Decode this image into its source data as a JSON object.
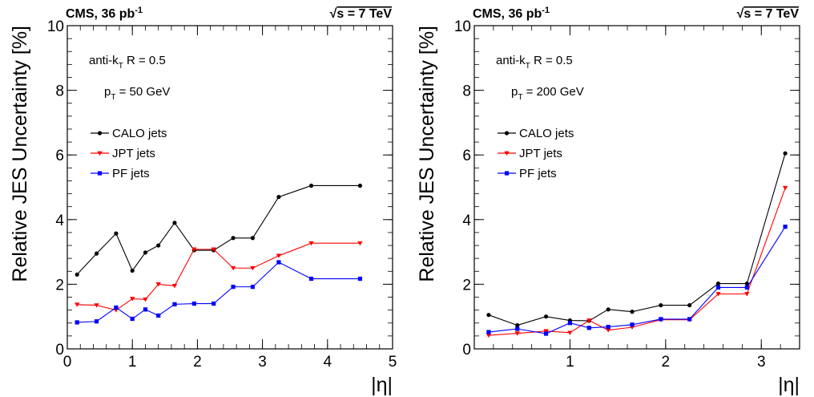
{
  "chart_data": [
    {
      "type": "line",
      "header_left": "CMS, 36 pb",
      "header_left_sup": "-1",
      "header_right_sqrt": "√",
      "header_right": "s = 7 TeV",
      "ylabel": "Relative JES Uncertainty [%]",
      "xlabel": "|η|",
      "xlim": [
        0,
        5
      ],
      "ylim": [
        0,
        10
      ],
      "xticks": [
        "0",
        "1",
        "2",
        "3",
        "4",
        "5"
      ],
      "yticks": [
        "0",
        "2",
        "4",
        "6",
        "8",
        "10"
      ],
      "annotation_algo_main": "anti-k",
      "annotation_algo_sub": "T",
      "annotation_algo_rest": " R = 0.5",
      "annotation_pt_main": "p",
      "annotation_pt_sub": "T",
      "annotation_pt_rest": " = 50 GeV",
      "series": [
        {
          "name": "CALO jets",
          "color": "#000000",
          "marker": "circle",
          "x": [
            0.15,
            0.45,
            0.75,
            1.0,
            1.2,
            1.4,
            1.65,
            1.95,
            2.25,
            2.55,
            2.85,
            3.25,
            3.75,
            4.5
          ],
          "y": [
            2.3,
            2.95,
            3.57,
            2.42,
            2.98,
            3.2,
            3.9,
            3.05,
            3.05,
            3.43,
            3.43,
            4.7,
            5.05,
            5.05
          ]
        },
        {
          "name": "JPT jets",
          "color": "#ff0000",
          "marker": "triangle-down",
          "x": [
            0.15,
            0.45,
            0.75,
            1.0,
            1.2,
            1.4,
            1.65,
            1.95,
            2.25,
            2.55,
            2.85,
            3.25,
            3.75,
            4.5
          ],
          "y": [
            1.37,
            1.35,
            1.2,
            1.55,
            1.53,
            2.0,
            1.95,
            3.08,
            3.08,
            2.5,
            2.5,
            2.88,
            3.27,
            3.27
          ]
        },
        {
          "name": "PF jets",
          "color": "#0000ff",
          "marker": "square",
          "x": [
            0.15,
            0.45,
            0.75,
            1.0,
            1.2,
            1.4,
            1.65,
            1.95,
            2.25,
            2.55,
            2.85,
            3.25,
            3.75,
            4.5
          ],
          "y": [
            0.82,
            0.85,
            1.28,
            0.93,
            1.22,
            1.03,
            1.38,
            1.4,
            1.4,
            1.92,
            1.92,
            2.68,
            2.17,
            2.17
          ]
        }
      ]
    },
    {
      "type": "line",
      "header_left": "CMS, 36 pb",
      "header_left_sup": "-1",
      "header_right_sqrt": "√",
      "header_right": "s = 7 TeV",
      "ylabel": "Relative JES Uncertainty [%]",
      "xlabel": "|η|",
      "xlim": [
        0,
        3.4
      ],
      "ylim": [
        0,
        10
      ],
      "xticks": [
        "1",
        "2",
        "3"
      ],
      "xtick_values": [
        1,
        2,
        3
      ],
      "yticks": [
        "0",
        "2",
        "4",
        "6",
        "8",
        "10"
      ],
      "annotation_algo_main": "anti-k",
      "annotation_algo_sub": "T",
      "annotation_algo_rest": " R = 0.5",
      "annotation_pt_main": "p",
      "annotation_pt_sub": "T",
      "annotation_pt_rest": " = 200 GeV",
      "series": [
        {
          "name": "CALO jets",
          "color": "#000000",
          "marker": "circle",
          "x": [
            0.15,
            0.45,
            0.75,
            1.0,
            1.2,
            1.4,
            1.65,
            1.95,
            2.25,
            2.55,
            2.85,
            3.25
          ],
          "y": [
            1.05,
            0.73,
            1.0,
            0.88,
            0.87,
            1.22,
            1.15,
            1.35,
            1.35,
            2.02,
            2.02,
            6.05
          ]
        },
        {
          "name": "JPT jets",
          "color": "#ff0000",
          "marker": "triangle-down",
          "x": [
            0.15,
            0.45,
            0.75,
            1.0,
            1.2,
            1.4,
            1.65,
            1.95,
            2.25,
            2.55,
            2.85,
            3.25
          ],
          "y": [
            0.42,
            0.48,
            0.55,
            0.5,
            0.88,
            0.58,
            0.67,
            0.9,
            0.9,
            1.7,
            1.7,
            4.98
          ]
        },
        {
          "name": "PF jets",
          "color": "#0000ff",
          "marker": "square",
          "x": [
            0.15,
            0.45,
            0.75,
            1.0,
            1.2,
            1.4,
            1.65,
            1.95,
            2.25,
            2.55,
            2.85,
            3.25
          ],
          "y": [
            0.52,
            0.62,
            0.47,
            0.8,
            0.65,
            0.68,
            0.75,
            0.92,
            0.92,
            1.9,
            1.9,
            3.78
          ]
        }
      ]
    }
  ]
}
